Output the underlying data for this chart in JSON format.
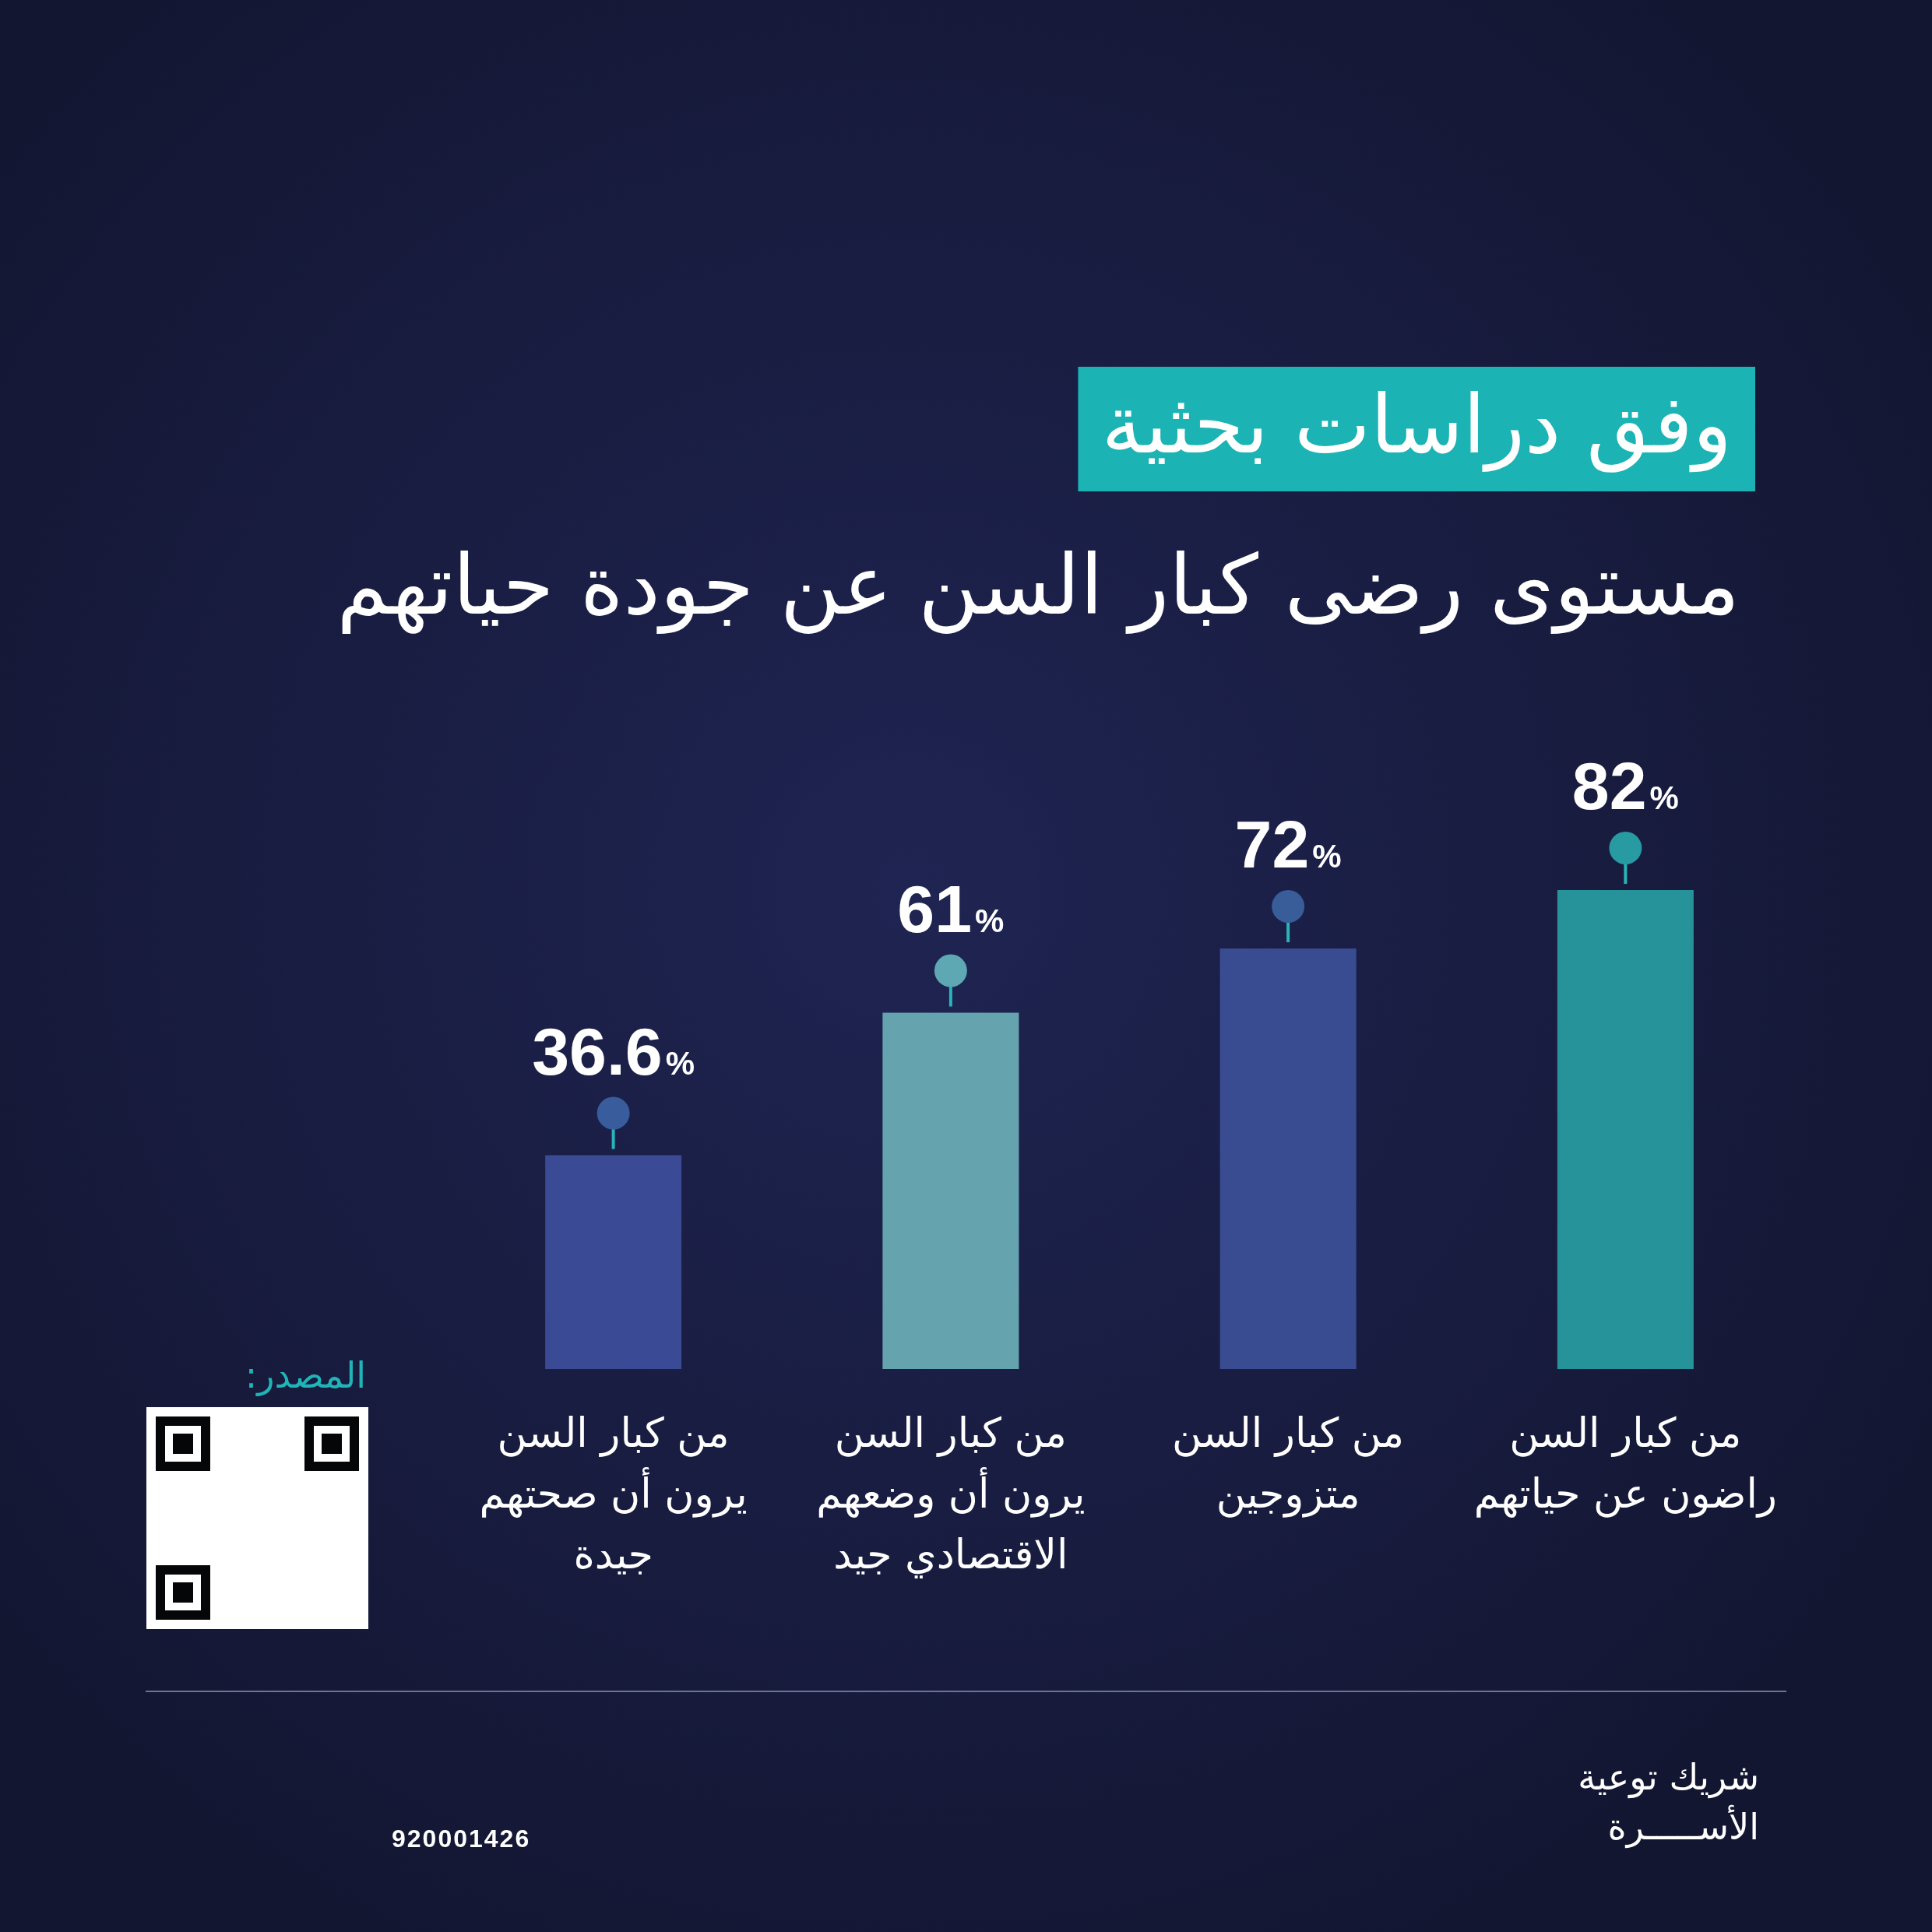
{
  "chart_data": {
    "type": "bar",
    "subtitle": "وفق دراسات بحثية",
    "title": "مستوى رضى كبار السن عن جودة حياتهم",
    "categories": [
      "من كبار السن يرون أن صحتهم جيدة",
      "من كبار السن يرون أن وضعهم الاقتصادي جيد",
      "من كبار السن متزوجين",
      "من كبار السن راضون عن حياتهم"
    ],
    "values": [
      36.6,
      61,
      72,
      82
    ],
    "colors": [
      "#3a4a94",
      "#65a4ae",
      "#394b91",
      "#26939a"
    ],
    "value_labels": [
      "36.6%",
      "61%",
      "72%",
      "82%"
    ],
    "annotations": [
      "المصدر:",
      "شريك توعية الأســـــرة",
      "920001426"
    ]
  }
}
